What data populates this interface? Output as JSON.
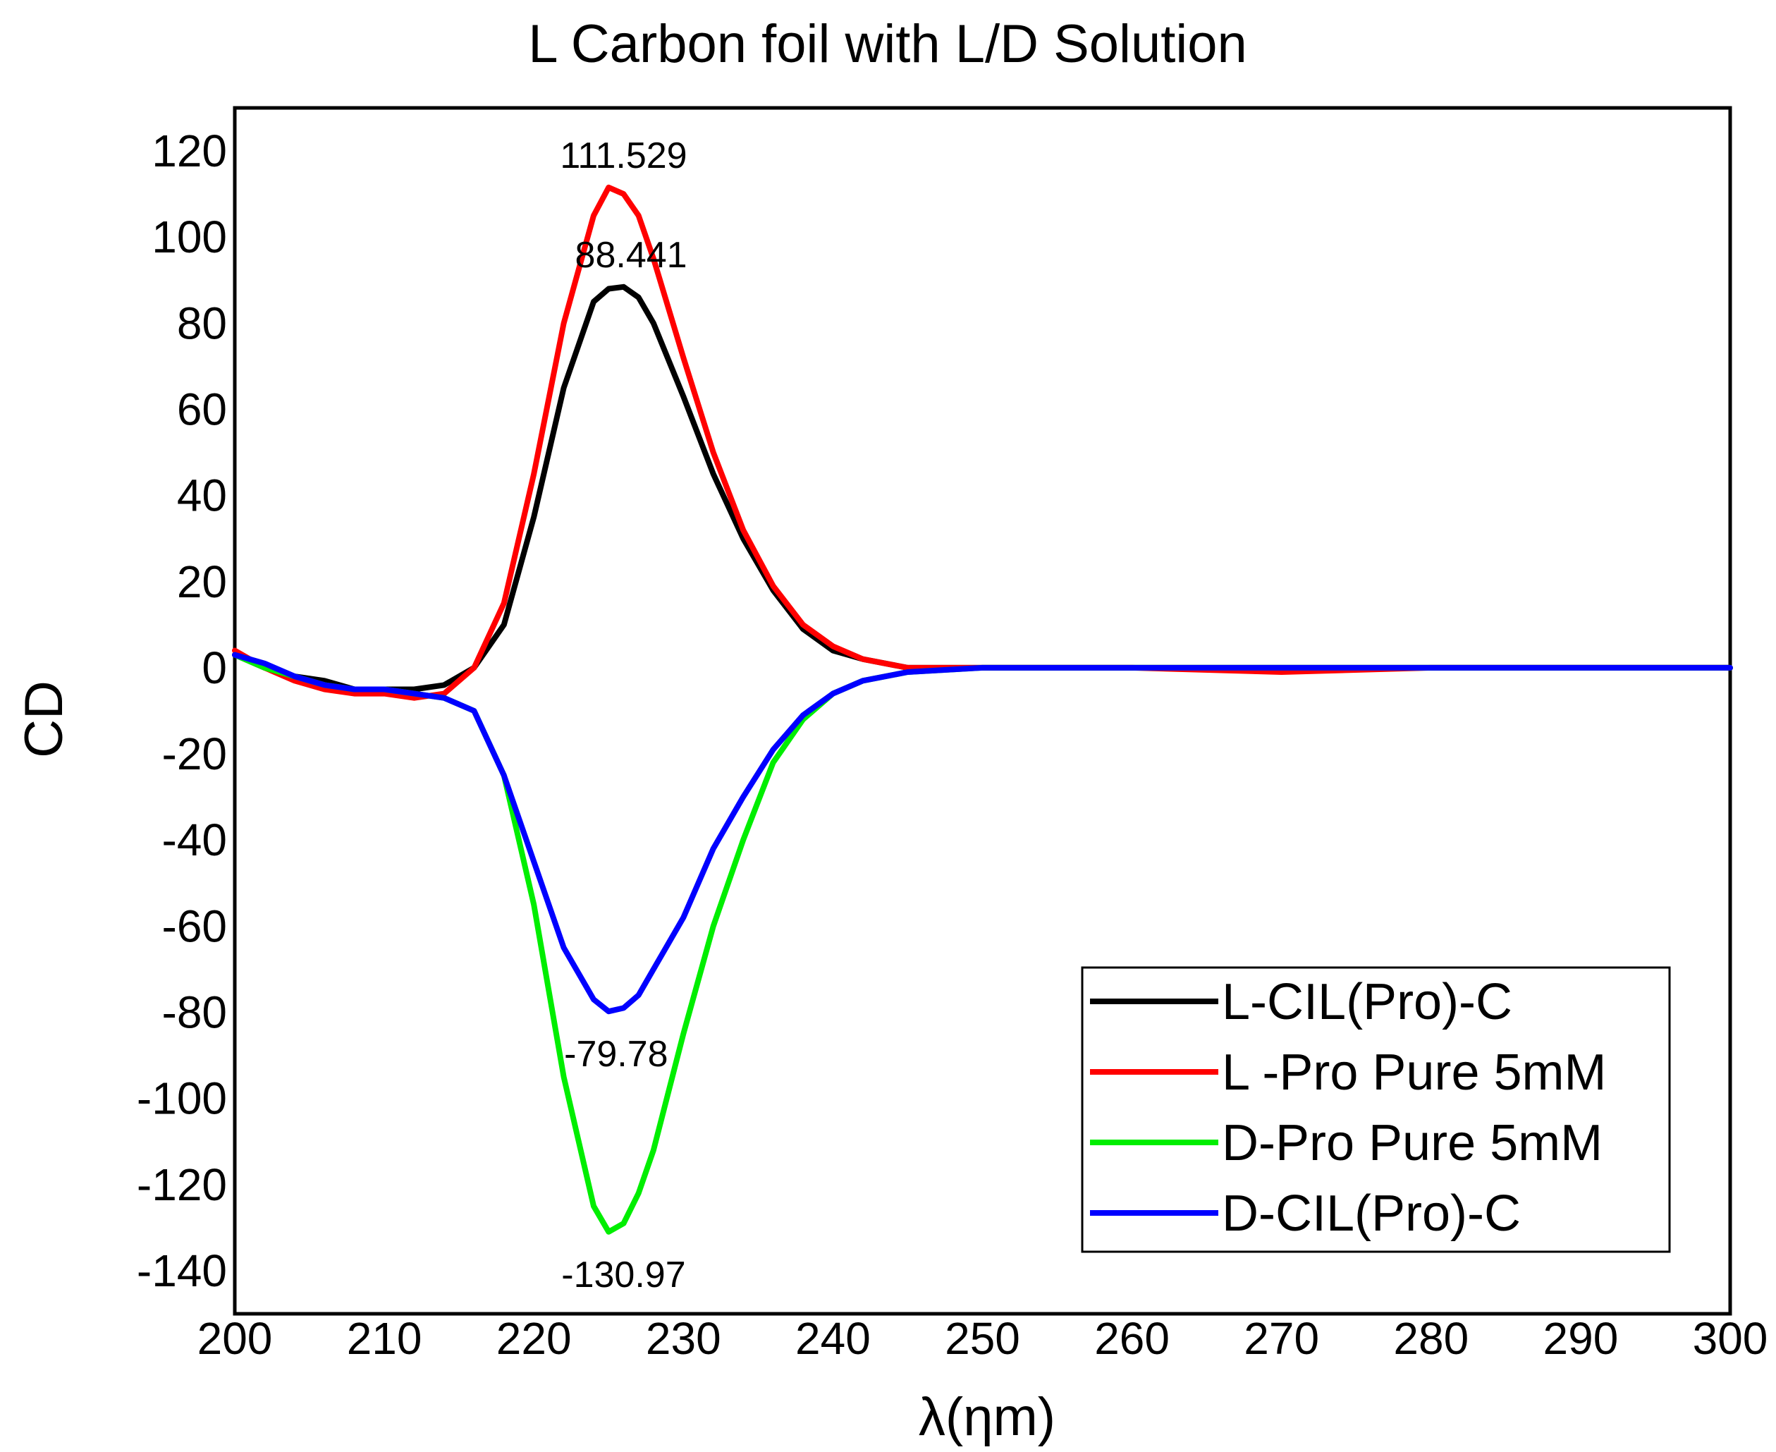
{
  "chart_data": {
    "type": "line",
    "title": "L Carbon foil with L/D Solution",
    "xlabel": "λ(ηm)",
    "ylabel": "CD",
    "xlim": [
      200,
      300
    ],
    "ylim": [
      -150,
      130
    ],
    "xticks": [
      "200",
      "210",
      "220",
      "230",
      "240",
      "250",
      "260",
      "270",
      "280",
      "290",
      "300"
    ],
    "yticks": [
      "120",
      "100",
      "80",
      "60",
      "40",
      "20",
      "0",
      "-20",
      "-40",
      "-60",
      "-80",
      "-100",
      "-120",
      "-140"
    ],
    "legend_position": "bottom-right",
    "x": [
      200,
      202,
      204,
      206,
      208,
      210,
      212,
      214,
      216,
      218,
      220,
      222,
      224,
      225,
      226,
      227,
      228,
      230,
      232,
      234,
      236,
      238,
      240,
      242,
      245,
      250,
      260,
      270,
      280,
      290,
      300
    ],
    "series": [
      {
        "name": "L-CIL(Pro)-C",
        "color": "#000000",
        "values": [
          3,
          0,
          -2,
          -3,
          -5,
          -5,
          -5,
          -4,
          0,
          10,
          35,
          65,
          85,
          88,
          88.441,
          86,
          80,
          63,
          45,
          30,
          18,
          9,
          4,
          2,
          0,
          0,
          0,
          0,
          0,
          0,
          0
        ]
      },
      {
        "name": "L -Pro Pure 5mM",
        "color": "#ff0000",
        "values": [
          4,
          0,
          -3,
          -5,
          -6,
          -6,
          -7,
          -6,
          0,
          15,
          45,
          80,
          105,
          111.529,
          110,
          105,
          95,
          72,
          50,
          32,
          19,
          10,
          5,
          2,
          0,
          0,
          0,
          -1,
          0,
          0,
          0
        ]
      },
      {
        "name": "D-Pro Pure 5mM",
        "color": "#00ee00",
        "values": [
          3,
          0,
          -2,
          -4,
          -5,
          -5,
          -6,
          -7,
          -10,
          -25,
          -55,
          -95,
          -125,
          -130.97,
          -129,
          -122,
          -112,
          -85,
          -60,
          -40,
          -22,
          -12,
          -6,
          -3,
          -1,
          0,
          0,
          0,
          0,
          0,
          0
        ]
      },
      {
        "name": "D-CIL(Pro)-C",
        "color": "#0000ff",
        "values": [
          3,
          1,
          -2,
          -4,
          -5,
          -5,
          -6,
          -7,
          -10,
          -25,
          -45,
          -65,
          -77,
          -79.78,
          -79,
          -76,
          -70,
          -58,
          -42,
          -30,
          -19,
          -11,
          -6,
          -3,
          -1,
          0,
          0,
          0,
          0,
          0,
          0
        ]
      }
    ],
    "annotations": [
      "111.529",
      "88.441",
      "-79.78",
      "-130.97"
    ]
  }
}
